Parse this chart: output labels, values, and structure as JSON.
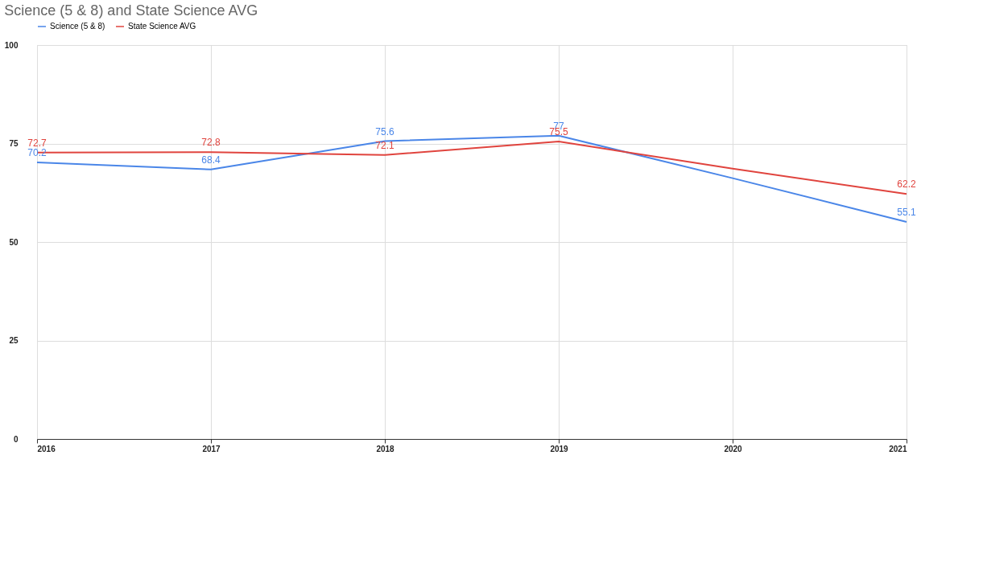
{
  "chart_data": {
    "type": "line",
    "title": "Science (5 & 8) and State Science AVG",
    "categories": [
      "2016",
      "2017",
      "2018",
      "2019",
      "2020",
      "2021"
    ],
    "series": [
      {
        "name": "Science (5 & 8)",
        "color": "#4a86e8",
        "values": [
          70.2,
          68.4,
          75.6,
          77,
          66.2,
          55.1
        ],
        "value_labels": [
          "70.2",
          "68.4",
          "75.6",
          "77",
          null,
          "55.1"
        ]
      },
      {
        "name": "State Science AVG",
        "color": "#e0443e",
        "values": [
          72.7,
          72.8,
          72.1,
          75.5,
          68.6,
          62.2
        ],
        "value_labels": [
          "72.7",
          "72.8",
          "72.1",
          "75.5",
          null,
          "62.2"
        ]
      }
    ],
    "ylim": [
      0,
      100
    ],
    "yticks": [
      0,
      25,
      50,
      75,
      100
    ],
    "grid": true,
    "legend": "top",
    "marker": "none",
    "line_style": "solid"
  }
}
